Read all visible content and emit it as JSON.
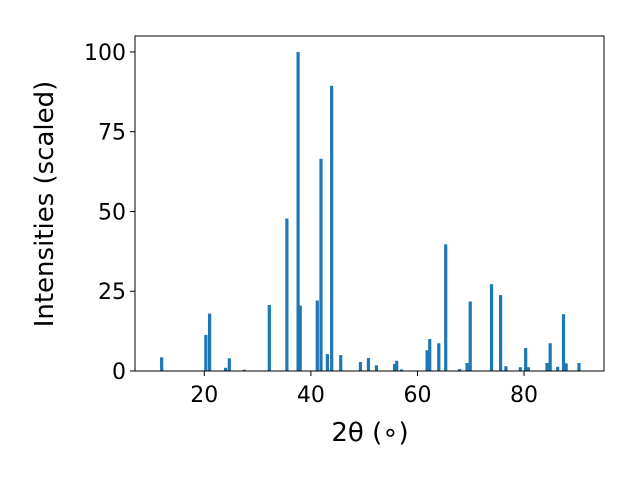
{
  "chart_data": {
    "type": "bar",
    "xlabel": "2θ (∘)",
    "ylabel": "Intensities (scaled)",
    "xlim": [
      7,
      95
    ],
    "ylim": [
      0,
      105
    ],
    "x_ticks": [
      20,
      40,
      60,
      80
    ],
    "y_ticks": [
      0,
      25,
      50,
      75,
      100
    ],
    "bar_color": "#1f77b4",
    "grid": false,
    "bar_width_deg": 0.6,
    "bars": [
      {
        "x": 12.0,
        "y": 4.3
      },
      {
        "x": 20.3,
        "y": 11.3
      },
      {
        "x": 21.0,
        "y": 18.0
      },
      {
        "x": 24.0,
        "y": 1.0
      },
      {
        "x": 24.7,
        "y": 4.0
      },
      {
        "x": 27.5,
        "y": 0.4
      },
      {
        "x": 32.2,
        "y": 20.7
      },
      {
        "x": 35.5,
        "y": 47.8
      },
      {
        "x": 37.6,
        "y": 100.0
      },
      {
        "x": 38.0,
        "y": 20.5
      },
      {
        "x": 41.2,
        "y": 22.1
      },
      {
        "x": 41.9,
        "y": 66.5
      },
      {
        "x": 43.1,
        "y": 5.3
      },
      {
        "x": 43.9,
        "y": 89.4
      },
      {
        "x": 45.6,
        "y": 5.0
      },
      {
        "x": 49.3,
        "y": 2.8
      },
      {
        "x": 50.8,
        "y": 4.1
      },
      {
        "x": 52.3,
        "y": 1.8
      },
      {
        "x": 55.7,
        "y": 2.2
      },
      {
        "x": 56.1,
        "y": 3.2
      },
      {
        "x": 57.0,
        "y": 0.5
      },
      {
        "x": 61.8,
        "y": 6.5
      },
      {
        "x": 62.3,
        "y": 10.0
      },
      {
        "x": 64.0,
        "y": 8.7
      },
      {
        "x": 65.3,
        "y": 39.7
      },
      {
        "x": 67.9,
        "y": 0.6
      },
      {
        "x": 69.3,
        "y": 2.5
      },
      {
        "x": 69.9,
        "y": 21.8
      },
      {
        "x": 73.9,
        "y": 27.2
      },
      {
        "x": 75.6,
        "y": 23.8
      },
      {
        "x": 76.6,
        "y": 1.5
      },
      {
        "x": 79.3,
        "y": 1.2
      },
      {
        "x": 80.3,
        "y": 7.2
      },
      {
        "x": 80.8,
        "y": 1.2
      },
      {
        "x": 84.3,
        "y": 2.5
      },
      {
        "x": 84.9,
        "y": 8.7
      },
      {
        "x": 86.3,
        "y": 1.3
      },
      {
        "x": 87.4,
        "y": 17.8
      },
      {
        "x": 87.9,
        "y": 2.4
      },
      {
        "x": 90.3,
        "y": 2.5
      }
    ]
  }
}
